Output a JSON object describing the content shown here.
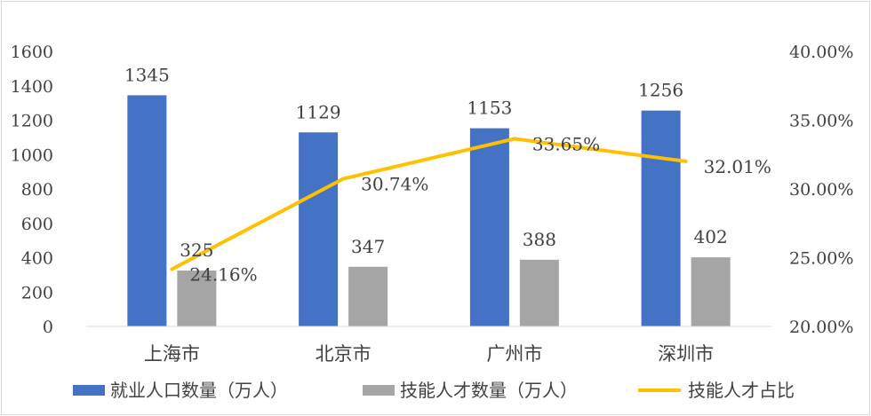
{
  "chart_data": {
    "type": "bar+line",
    "categories": [
      "上海市",
      "北京市",
      "广州市",
      "深圳市"
    ],
    "series": [
      {
        "name": "就业人口数量（万人）",
        "type": "bar",
        "axis": "left",
        "color": "#4472c4",
        "values": [
          1345,
          1129,
          1153,
          1256
        ],
        "labels": [
          "1345",
          "1129",
          "1153",
          "1256"
        ]
      },
      {
        "name": "技能人才数量（万人）",
        "type": "bar",
        "axis": "left",
        "color": "#a5a5a5",
        "values": [
          325,
          347,
          388,
          402
        ],
        "labels": [
          "325",
          "347",
          "388",
          "402"
        ]
      },
      {
        "name": "技能人才占比",
        "type": "line",
        "axis": "right",
        "color": "#ffc000",
        "values": [
          24.16,
          30.74,
          33.65,
          32.01
        ],
        "labels": [
          "24.16%",
          "30.74%",
          "33.65%",
          "32.01%"
        ]
      }
    ],
    "left_axis": {
      "ylim": [
        0,
        1600
      ],
      "ticks": [
        "0",
        "200",
        "400",
        "600",
        "800",
        "1000",
        "1200",
        "1400",
        "1600"
      ]
    },
    "right_axis": {
      "ylim": [
        20,
        40
      ],
      "ticks": [
        "20.00%",
        "25.00%",
        "30.00%",
        "35.00%",
        "40.00%"
      ]
    },
    "legend": {
      "position": "bottom"
    },
    "grid": false
  }
}
